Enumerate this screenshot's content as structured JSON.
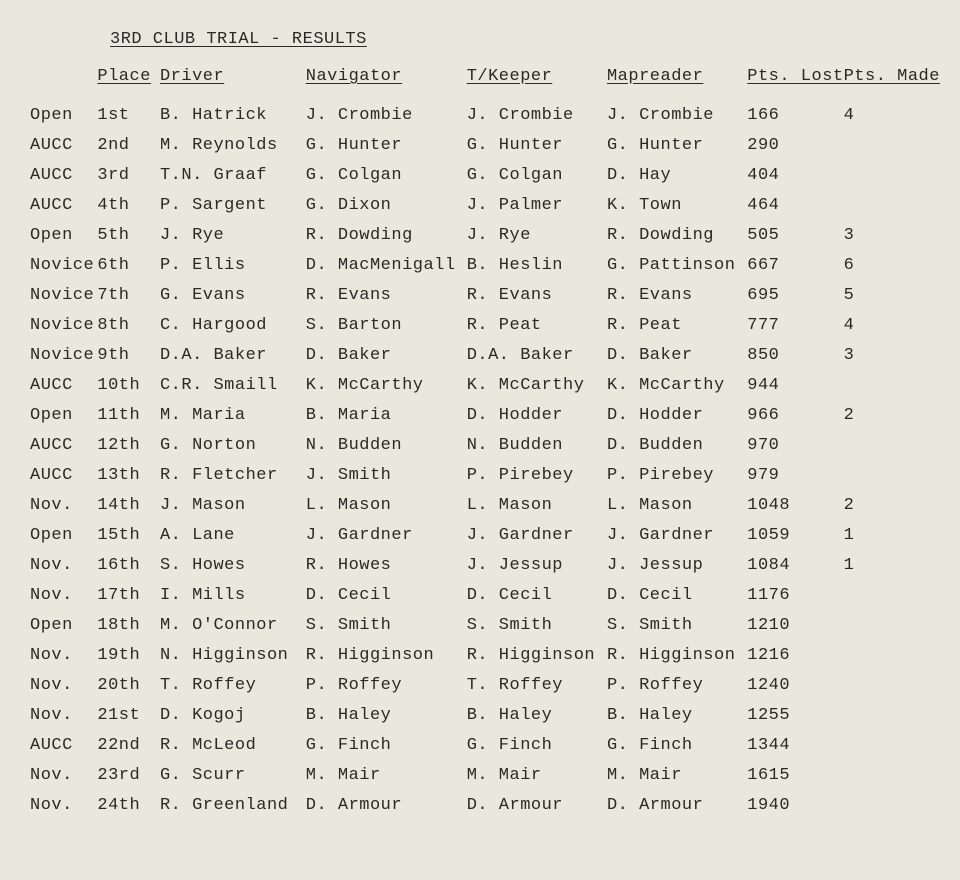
{
  "title": "3RD CLUB TRIAL - RESULTS",
  "headers": {
    "place": "Place",
    "driver": "Driver",
    "navigator": "Navigator",
    "tkeeper": "T/Keeper",
    "mapreader": "Mapreader",
    "pts_lost": "Pts. Lost",
    "pts_made": "Pts. Made"
  },
  "rows": [
    {
      "class": "Open",
      "place": "1st",
      "driver": "B. Hatrick",
      "nav": "J. Crombie",
      "tk": "J. Crombie",
      "map": "J. Crombie",
      "lost": "166",
      "made": "4"
    },
    {
      "class": "AUCC",
      "place": "2nd",
      "driver": "M. Reynolds",
      "nav": "G. Hunter",
      "tk": "G. Hunter",
      "map": "G. Hunter",
      "lost": "290",
      "made": ""
    },
    {
      "class": "AUCC",
      "place": "3rd",
      "driver": "T.N. Graaf",
      "nav": "G. Colgan",
      "tk": "G. Colgan",
      "map": "D. Hay",
      "lost": "404",
      "made": ""
    },
    {
      "class": "AUCC",
      "place": "4th",
      "driver": "P. Sargent",
      "nav": "G. Dixon",
      "tk": "J. Palmer",
      "map": "K. Town",
      "lost": "464",
      "made": ""
    },
    {
      "class": "Open",
      "place": "5th",
      "driver": "J. Rye",
      "nav": "R. Dowding",
      "tk": "J. Rye",
      "map": "R. Dowding",
      "lost": "505",
      "made": "3"
    },
    {
      "class": "Novice",
      "place": "6th",
      "driver": "P. Ellis",
      "nav": "D. MacMenigall",
      "tk": "B. Heslin",
      "map": "G. Pattinson",
      "lost": "667",
      "made": "6"
    },
    {
      "class": "Novice",
      "place": "7th",
      "driver": "G. Evans",
      "nav": "R. Evans",
      "tk": "R. Evans",
      "map": "R. Evans",
      "lost": "695",
      "made": "5"
    },
    {
      "class": "Novice",
      "place": "8th",
      "driver": "C. Hargood",
      "nav": "S. Barton",
      "tk": "R. Peat",
      "map": "R. Peat",
      "lost": "777",
      "made": "4"
    },
    {
      "class": "Novice",
      "place": "9th",
      "driver": "D.A. Baker",
      "nav": "D. Baker",
      "tk": "D.A. Baker",
      "map": "D. Baker",
      "lost": "850",
      "made": "3"
    },
    {
      "class": "AUCC",
      "place": "10th",
      "driver": "C.R. Smaill",
      "nav": "K. McCarthy",
      "tk": "K. McCarthy",
      "map": "K. McCarthy",
      "lost": "944",
      "made": ""
    },
    {
      "class": "Open",
      "place": "11th",
      "driver": "M. Maria",
      "nav": "B. Maria",
      "tk": "D. Hodder",
      "map": "D. Hodder",
      "lost": "966",
      "made": "2"
    },
    {
      "class": "AUCC",
      "place": "12th",
      "driver": "G. Norton",
      "nav": "N. Budden",
      "tk": "N. Budden",
      "map": "D. Budden",
      "lost": "970",
      "made": ""
    },
    {
      "class": "AUCC",
      "place": "13th",
      "driver": "R. Fletcher",
      "nav": "J. Smith",
      "tk": "P. Pirebey",
      "map": "P. Pirebey",
      "lost": "979",
      "made": ""
    },
    {
      "class": "Nov.",
      "place": "14th",
      "driver": "J. Mason",
      "nav": "L. Mason",
      "tk": "L. Mason",
      "map": "L. Mason",
      "lost": "1048",
      "made": "2"
    },
    {
      "class": "Open",
      "place": "15th",
      "driver": "A. Lane",
      "nav": "J. Gardner",
      "tk": "J. Gardner",
      "map": "J. Gardner",
      "lost": "1059",
      "made": "1"
    },
    {
      "class": "Nov.",
      "place": "16th",
      "driver": "S. Howes",
      "nav": "R. Howes",
      "tk": "J. Jessup",
      "map": "J. Jessup",
      "lost": "1084",
      "made": "1"
    },
    {
      "class": "Nov.",
      "place": "17th",
      "driver": "I. Mills",
      "nav": "D. Cecil",
      "tk": "D. Cecil",
      "map": "D. Cecil",
      "lost": "1176",
      "made": ""
    },
    {
      "class": "Open",
      "place": "18th",
      "driver": "M. O'Connor",
      "nav": "S. Smith",
      "tk": "S. Smith",
      "map": "S. Smith",
      "lost": "1210",
      "made": ""
    },
    {
      "class": "Nov.",
      "place": "19th",
      "driver": "N. Higginson",
      "nav": "R. Higginson",
      "tk": "R. Higginson",
      "map": "R. Higginson",
      "lost": "1216",
      "made": ""
    },
    {
      "class": "Nov.",
      "place": "20th",
      "driver": "T. Roffey",
      "nav": "P. Roffey",
      "tk": "T. Roffey",
      "map": "P. Roffey",
      "lost": "1240",
      "made": ""
    },
    {
      "class": "Nov.",
      "place": "21st",
      "driver": "D. Kogoj",
      "nav": "B. Haley",
      "tk": "B. Haley",
      "map": "B. Haley",
      "lost": "1255",
      "made": ""
    },
    {
      "class": "AUCC",
      "place": "22nd",
      "driver": "R. McLeod",
      "nav": "G. Finch",
      "tk": "G. Finch",
      "map": "G. Finch",
      "lost": "1344",
      "made": ""
    },
    {
      "class": "Nov.",
      "place": "23rd",
      "driver": "G. Scurr",
      "nav": "M. Mair",
      "tk": "M. Mair",
      "map": "M. Mair",
      "lost": "1615",
      "made": ""
    },
    {
      "class": "Nov.",
      "place": "24th",
      "driver": "R. Greenland",
      "nav": "D. Armour",
      "tk": "D. Armour",
      "map": "D. Armour",
      "lost": "1940",
      "made": ""
    }
  ]
}
